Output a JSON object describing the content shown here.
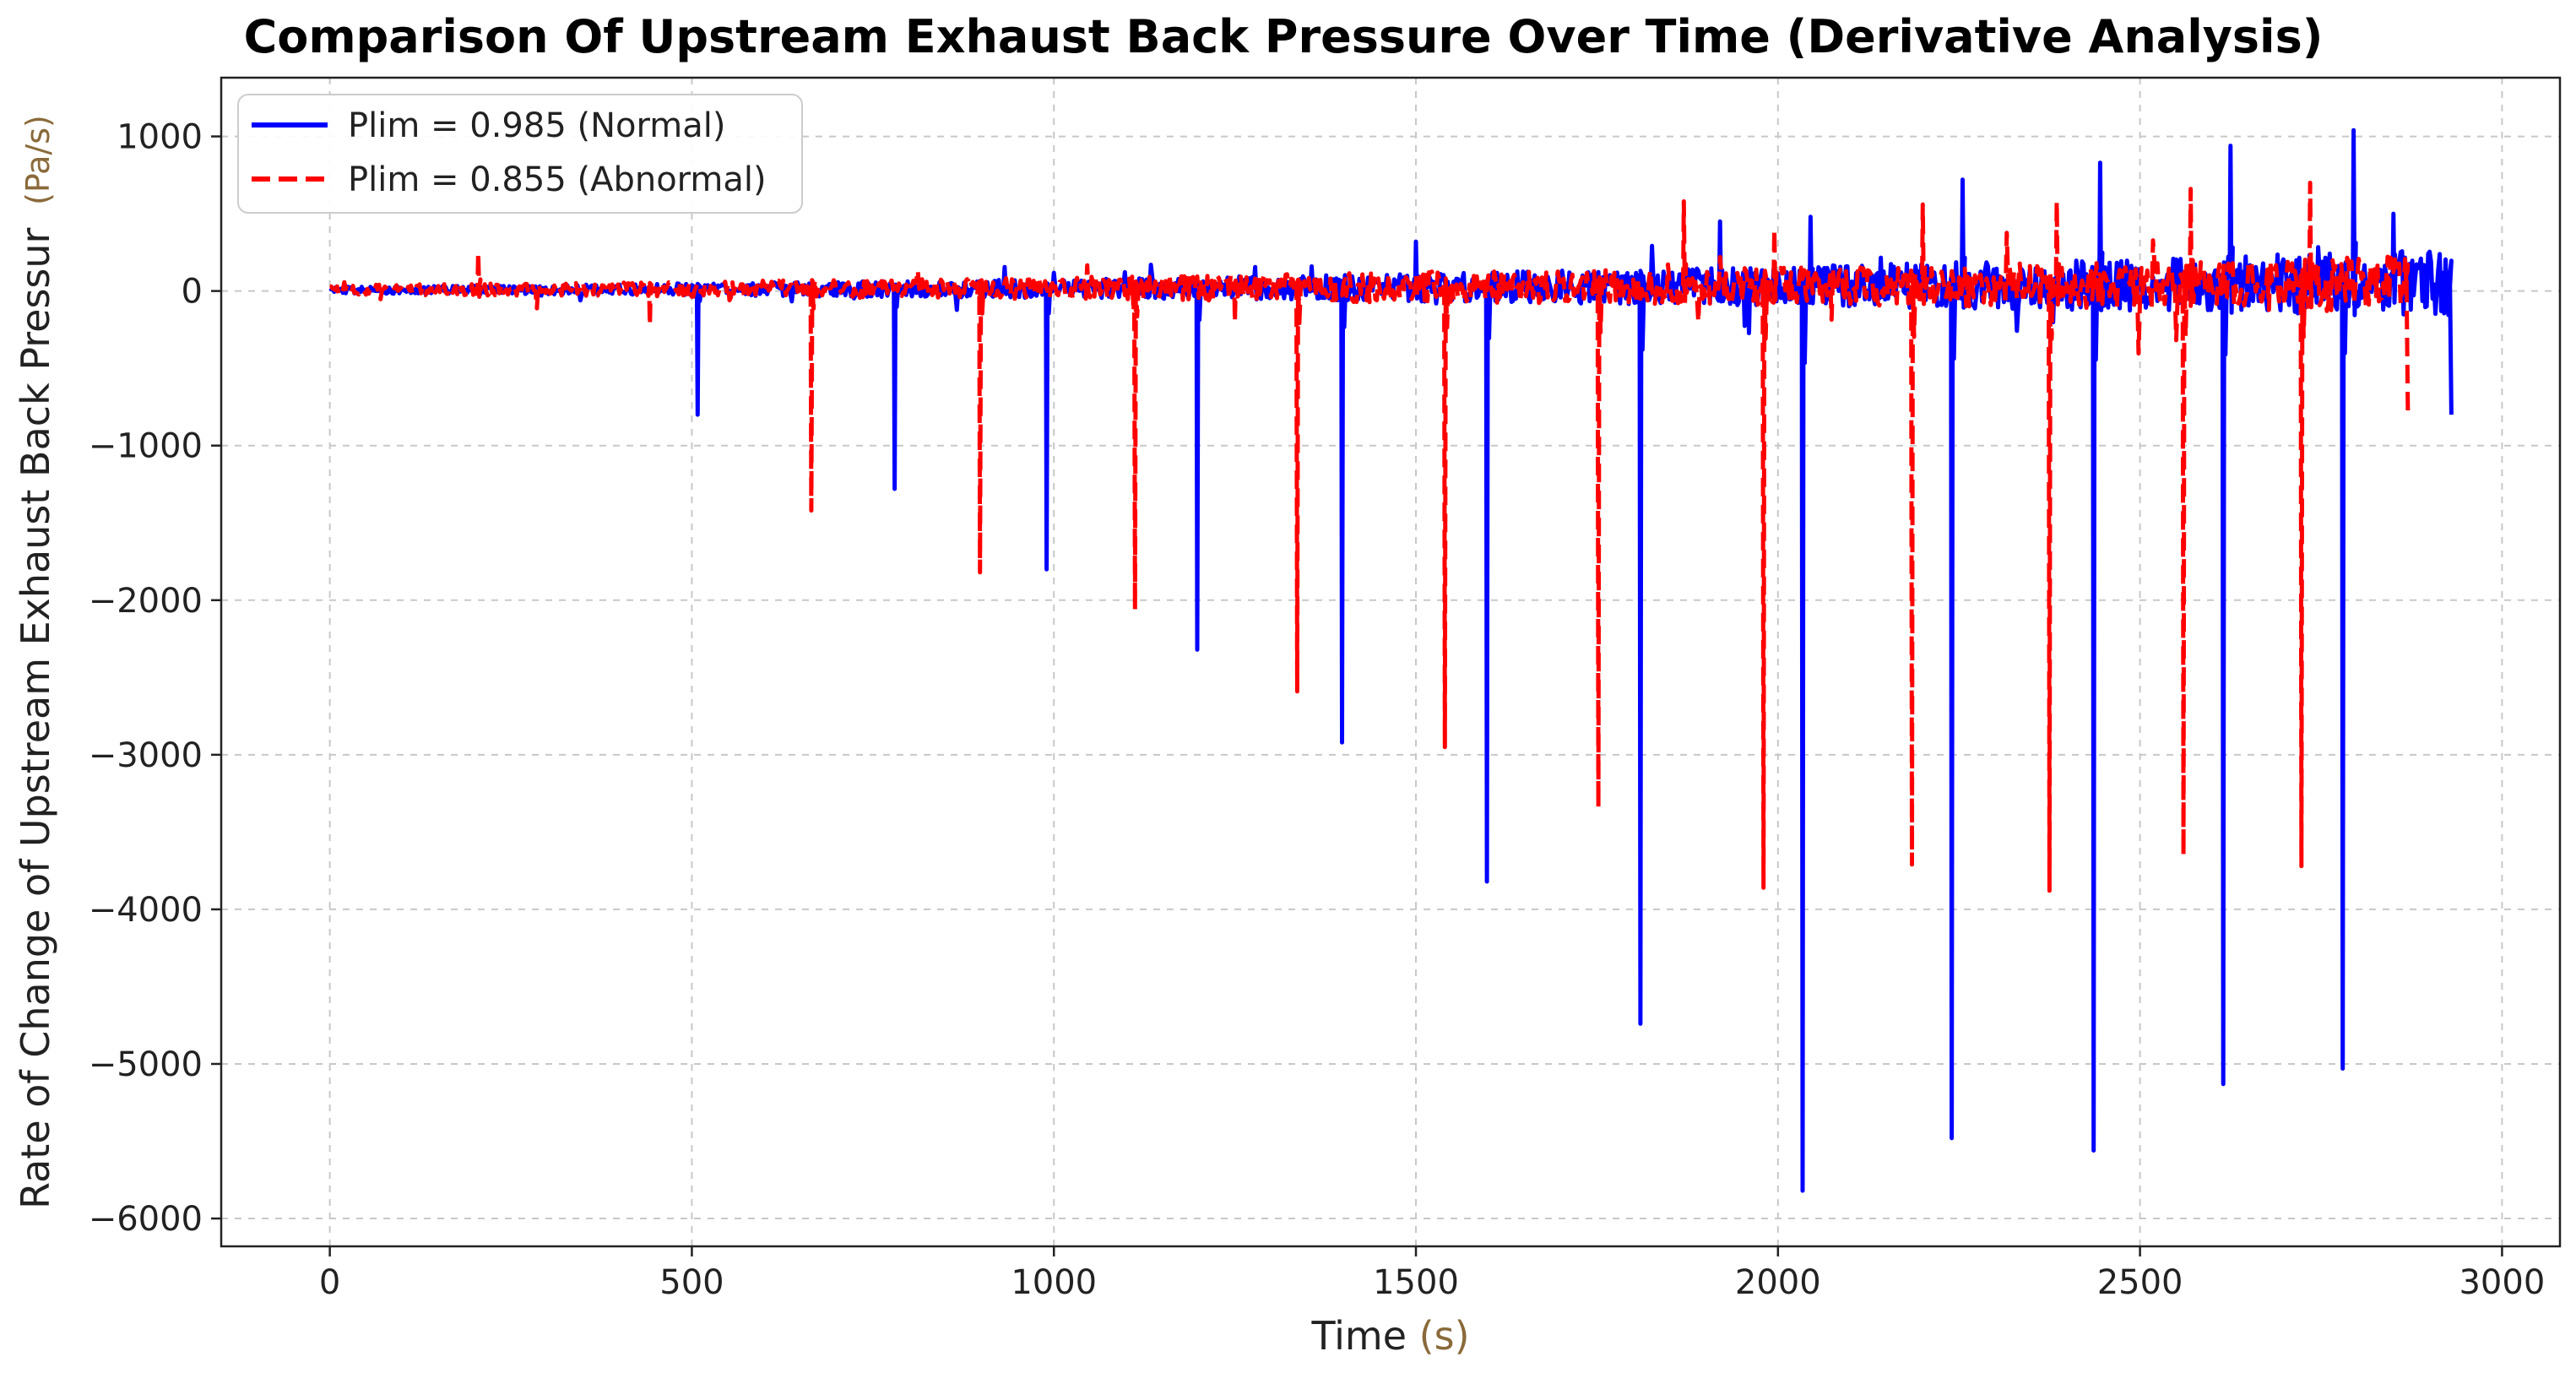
{
  "chart_data": {
    "type": "line",
    "title": "Comparison Of Upstream Exhaust Back Pressure Over Time (Derivative Analysis)",
    "xlabel": "Time",
    "xlabel_unit": "(s)",
    "ylabel": "Rate of Change of Upstream Exhaust Back Pressur",
    "ylabel_unit": "(Pa/s)",
    "xlim": [
      -150,
      3080
    ],
    "ylim": [
      -6180,
      1380
    ],
    "xticks": [
      0,
      500,
      1000,
      1500,
      2000,
      2500,
      3000
    ],
    "yticks": [
      -6000,
      -5000,
      -4000,
      -3000,
      -2000,
      -1000,
      0,
      1000
    ],
    "grid": true,
    "legend_position": "top-left",
    "series": [
      {
        "name": "Plim = 0.985 (Normal)",
        "color": "#0000ff",
        "style": "solid",
        "t_end": 2930,
        "end_value": -800,
        "noise": [
          [
            0,
            20
          ],
          [
            500,
            40
          ],
          [
            1000,
            60
          ],
          [
            1500,
            90
          ],
          [
            2000,
            130
          ],
          [
            2500,
            170
          ],
          [
            2930,
            220
          ]
        ],
        "drops": [
          {
            "t": 508,
            "min": -800
          },
          {
            "t": 780,
            "min": -1280
          },
          {
            "t": 990,
            "min": -1800
          },
          {
            "t": 1198,
            "min": -2320
          },
          {
            "t": 1398,
            "min": -2920
          },
          {
            "t": 1598,
            "min": -3820
          },
          {
            "t": 1810,
            "min": -4740
          },
          {
            "t": 2034,
            "min": -5820
          },
          {
            "t": 2240,
            "min": -5480
          },
          {
            "t": 2436,
            "min": -5560
          },
          {
            "t": 2615,
            "min": -5130
          },
          {
            "t": 2780,
            "min": -5030
          }
        ],
        "spikes": [
          {
            "t": 1500,
            "max": 320
          },
          {
            "t": 1920,
            "max": 450
          },
          {
            "t": 2045,
            "max": 480
          },
          {
            "t": 2255,
            "max": 720
          },
          {
            "t": 2445,
            "max": 830
          },
          {
            "t": 2625,
            "max": 940
          },
          {
            "t": 2795,
            "max": 1040
          },
          {
            "t": 2850,
            "max": 500
          }
        ]
      },
      {
        "name": "Plim = 0.855 (Abnormal)",
        "color": "#ff0000",
        "style": "dashed",
        "t_end": 2870,
        "end_value": -800,
        "noise": [
          [
            0,
            30
          ],
          [
            500,
            50
          ],
          [
            1000,
            70
          ],
          [
            1500,
            100
          ],
          [
            2000,
            120
          ],
          [
            2500,
            150
          ],
          [
            2870,
            180
          ]
        ],
        "drops": [
          {
            "t": 442,
            "min": -220
          },
          {
            "t": 665,
            "min": -1420
          },
          {
            "t": 898,
            "min": -1820
          },
          {
            "t": 1112,
            "min": -2060
          },
          {
            "t": 1250,
            "min": -200
          },
          {
            "t": 1336,
            "min": -2590
          },
          {
            "t": 1540,
            "min": -2950
          },
          {
            "t": 1752,
            "min": -3340
          },
          {
            "t": 1980,
            "min": -3860
          },
          {
            "t": 2185,
            "min": -3710
          },
          {
            "t": 2375,
            "min": -3880
          },
          {
            "t": 2560,
            "min": -3650
          },
          {
            "t": 2723,
            "min": -3720
          }
        ],
        "spikes": [
          {
            "t": 205,
            "max": 250
          },
          {
            "t": 1870,
            "max": 580
          },
          {
            "t": 1995,
            "max": 400
          },
          {
            "t": 2200,
            "max": 560
          },
          {
            "t": 2385,
            "max": 580
          },
          {
            "t": 2570,
            "max": 660
          },
          {
            "t": 2735,
            "max": 700
          }
        ]
      }
    ]
  }
}
